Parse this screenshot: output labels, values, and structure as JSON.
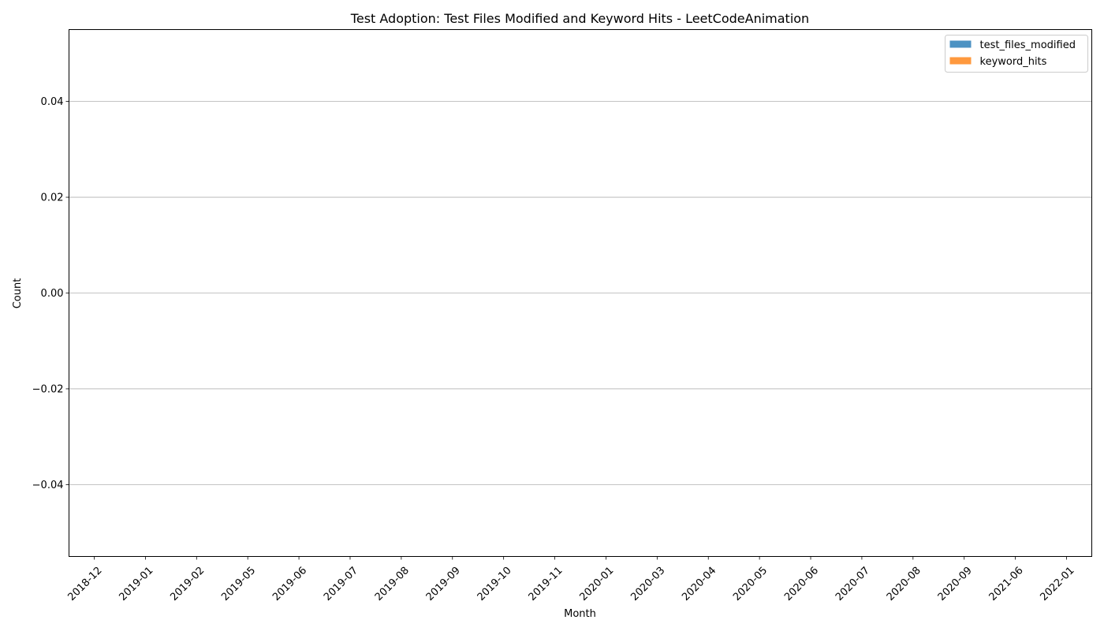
{
  "chart_data": {
    "type": "bar",
    "title": "Test Adoption: Test Files Modified and Keyword Hits - LeetCodeAnimation",
    "xlabel": "Month",
    "ylabel": "Count",
    "categories": [
      "2018-12",
      "2019-01",
      "2019-02",
      "2019-05",
      "2019-06",
      "2019-07",
      "2019-08",
      "2019-09",
      "2019-10",
      "2019-11",
      "2020-01",
      "2020-03",
      "2020-04",
      "2020-05",
      "2020-06",
      "2020-07",
      "2020-08",
      "2020-09",
      "2021-06",
      "2022-01"
    ],
    "series": [
      {
        "name": "test_files_modified",
        "color": "#1f77b4",
        "values": [
          0,
          0,
          0,
          0,
          0,
          0,
          0,
          0,
          0,
          0,
          0,
          0,
          0,
          0,
          0,
          0,
          0,
          0,
          0,
          0
        ]
      },
      {
        "name": "keyword_hits",
        "color": "#ff7f0e",
        "values": [
          0,
          0,
          0,
          0,
          0,
          0,
          0,
          0,
          0,
          0,
          0,
          0,
          0,
          0,
          0,
          0,
          0,
          0,
          0,
          0
        ]
      }
    ],
    "ylim": [
      -0.055,
      0.055
    ],
    "yticks": [
      -0.04,
      -0.02,
      0.0,
      0.02,
      0.04
    ],
    "ytick_labels": [
      "−0.04",
      "−0.02",
      "0.00",
      "0.02",
      "0.04"
    ],
    "grid": "y-major",
    "legend_position": "top-right"
  }
}
